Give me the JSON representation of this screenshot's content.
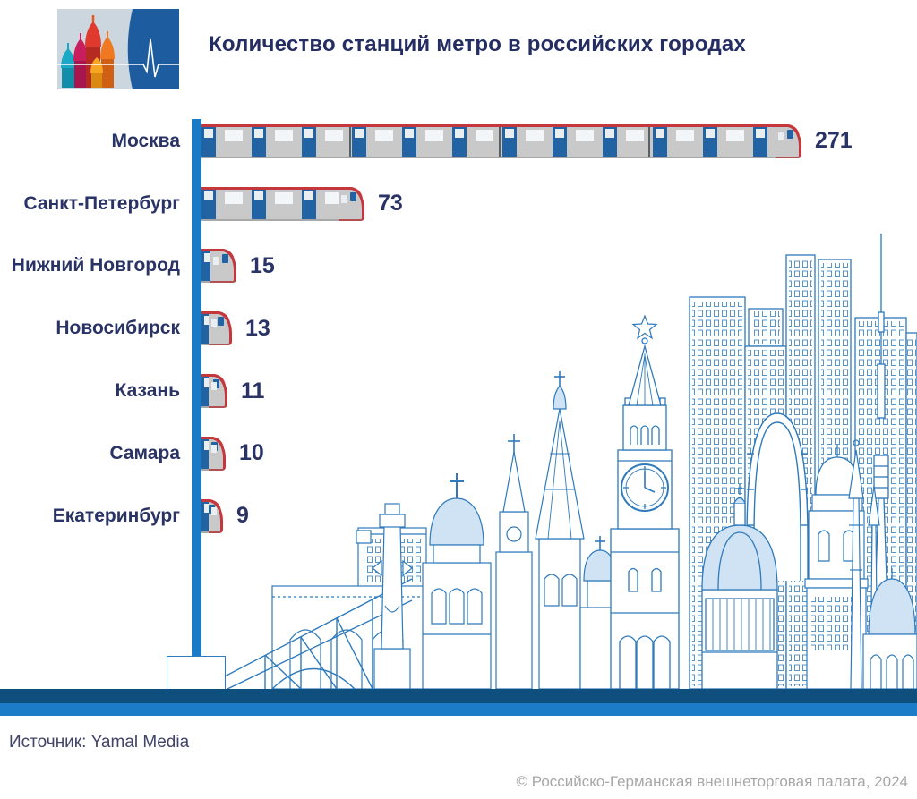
{
  "header": {
    "title": "Количество станций метро в российских городах",
    "logo": {
      "icon": "kremlin-cathedral-and-pulse-logo",
      "background_color": "#ccd6df",
      "panel_color": "#1d5c9e",
      "dome_colors": [
        "#1ba8c4",
        "#c81e5e",
        "#e03a2f",
        "#f07820",
        "#f5a623"
      ]
    }
  },
  "chart_data": {
    "type": "bar",
    "orientation": "horizontal",
    "bar_style": "metro-train",
    "title": "Количество станций метро в российских городах",
    "categories": [
      "Москва",
      "Санкт-Петербург",
      "Нижний Новгород",
      "Новосибирск",
      "Казань",
      "Самара",
      "Екатеринбург"
    ],
    "values": [
      271,
      73,
      15,
      13,
      11,
      10,
      9
    ],
    "value_labels": [
      "271",
      "73",
      "15",
      "13",
      "11",
      "10",
      "9"
    ],
    "xlabel": "",
    "ylabel": "",
    "xlim": [
      0,
      271
    ],
    "grid": false,
    "legend": "none",
    "axis_color": "#1b7ac5",
    "label_color": "#2a3365",
    "value_color": "#2a3365",
    "train_body_color": "#c9c9c9",
    "train_stripe_color": "#c4373d",
    "train_door_color": "#2263a4"
  },
  "background": {
    "illustration": "blue-line-art-city-skyline",
    "skyline_color": "#2e7abc",
    "band_dark_color": "#0f4f7e",
    "band_light_color": "#1c7cc7"
  },
  "footer": {
    "source": "Источник: Yamal Media",
    "copyright": "© Российско-Германская внешнеторговая палата, 2024"
  }
}
